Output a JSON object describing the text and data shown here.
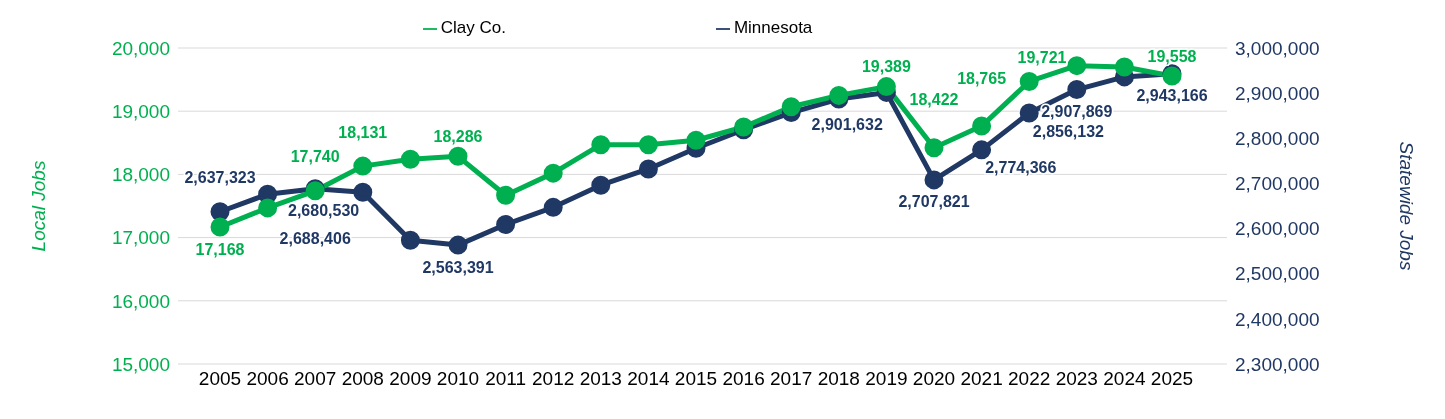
{
  "chart_data": {
    "type": "line",
    "categories": [
      "2005",
      "2006",
      "2007",
      "2008",
      "2009",
      "2010",
      "2011",
      "2012",
      "2013",
      "2014",
      "2015",
      "2016",
      "2017",
      "2018",
      "2019",
      "2020",
      "2021",
      "2022",
      "2023",
      "2024",
      "2025"
    ],
    "series": [
      {
        "name": "Clay Co.",
        "color": "#00b050",
        "values": [
          17168,
          17470,
          17740,
          18131,
          18240,
          18286,
          17670,
          18020,
          18470,
          18470,
          18540,
          18750,
          19070,
          19250,
          19389,
          18422,
          18765,
          19470,
          19721,
          19700,
          19558
        ],
        "value_labels": [
          "17,168",
          null,
          "17,740",
          "18,131",
          null,
          "18,286",
          null,
          null,
          null,
          null,
          null,
          null,
          null,
          null,
          "19,389",
          "18,422",
          "18,765",
          null,
          "19,721",
          null,
          "19,558"
        ]
      },
      {
        "name": "Minnesota",
        "color": "#203864",
        "axis": "y2",
        "values": [
          2637323,
          2676000,
          2688406,
          2680530,
          2574000,
          2563391,
          2609000,
          2647000,
          2696000,
          2732000,
          2778000,
          2819000,
          2857000,
          2887000,
          2901632,
          2707821,
          2774366,
          2856132,
          2907869,
          2936000,
          2943166
        ],
        "value_labels": [
          "2,637,323",
          null,
          "2,688,406",
          "2,680,530",
          null,
          "2,563,391",
          null,
          null,
          null,
          null,
          null,
          null,
          null,
          null,
          "2,901,632",
          "2,707,821",
          "2,774,366",
          "2,856,132",
          "2,907,869",
          null,
          "2,943,166"
        ]
      }
    ],
    "ylabel": "Local Jobs",
    "y2label": "Statewide Jobs",
    "ylim": [
      15000,
      20000
    ],
    "yticks": [
      {
        "value": 15000,
        "label": "15,000"
      },
      {
        "value": 16000,
        "label": "16,000"
      },
      {
        "value": 17000,
        "label": "17,000"
      },
      {
        "value": 18000,
        "label": "18,000"
      },
      {
        "value": 19000,
        "label": "19,000"
      },
      {
        "value": 20000,
        "label": "20,000"
      }
    ],
    "y2lim": [
      2300000,
      3000000
    ],
    "y2ticks": [
      {
        "value": 2300000,
        "label": "2,300,000"
      },
      {
        "value": 2400000,
        "label": "2,400,000"
      },
      {
        "value": 2500000,
        "label": "2,500,000"
      },
      {
        "value": 2600000,
        "label": "2,600,000"
      },
      {
        "value": 2700000,
        "label": "2,700,000"
      },
      {
        "value": 2800000,
        "label": "2,800,000"
      },
      {
        "value": 2900000,
        "label": "2,900,000"
      },
      {
        "value": 3000000,
        "label": "3,000,000"
      }
    ],
    "grid": "y",
    "legend": "top",
    "marker": "circle",
    "line_style": "solid"
  }
}
